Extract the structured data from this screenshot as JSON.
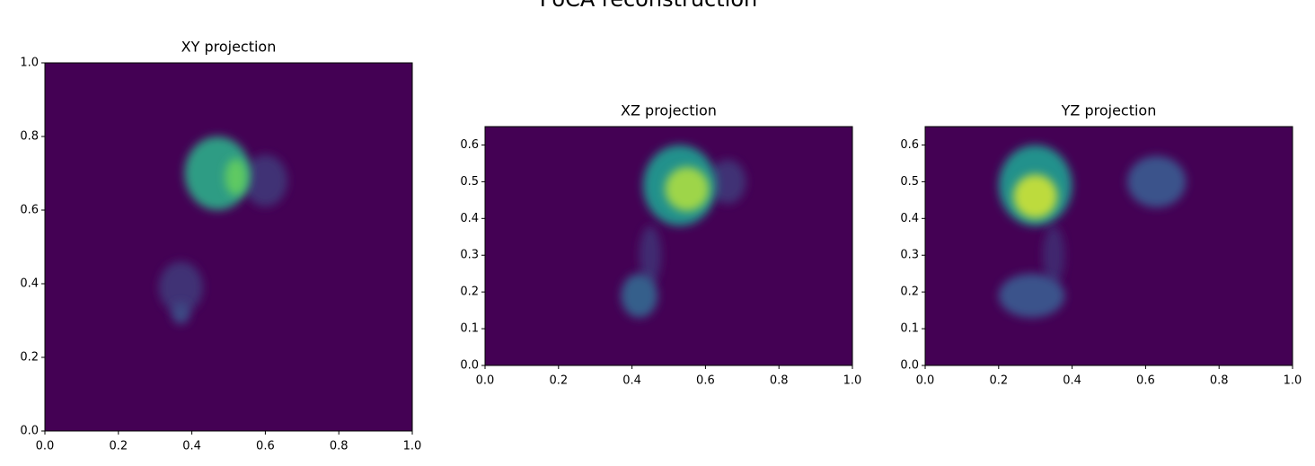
{
  "title": "PoCA reconstruction",
  "chart_data": [
    {
      "type": "heatmap",
      "title": "XY projection",
      "xlim": [
        0,
        1
      ],
      "ylim": [
        0,
        1
      ],
      "xticks": [
        {
          "value": 0,
          "label": "0.0"
        },
        0.2,
        0.4,
        0.6,
        0.8,
        {
          "value": 1,
          "label": "1.0"
        }
      ],
      "yticks": [
        {
          "value": 0,
          "label": "0.0"
        },
        0.2,
        0.4,
        0.6,
        0.8,
        {
          "value": 1,
          "label": "1.0"
        }
      ],
      "blobs": [
        {
          "x": 0.6,
          "y": 0.68,
          "rx": 0.06,
          "ry": 0.07,
          "value": 0.15
        },
        {
          "x": 0.47,
          "y": 0.7,
          "rx": 0.09,
          "ry": 0.1,
          "value": 0.55
        },
        {
          "x": 0.52,
          "y": 0.69,
          "rx": 0.03,
          "ry": 0.05,
          "value": 0.75
        },
        {
          "x": 0.37,
          "y": 0.39,
          "rx": 0.06,
          "ry": 0.07,
          "value": 0.15
        },
        {
          "x": 0.37,
          "y": 0.32,
          "rx": 0.025,
          "ry": 0.03,
          "value": 0.22
        }
      ]
    },
    {
      "type": "heatmap",
      "title": "XZ projection",
      "xlim": [
        0,
        1
      ],
      "ylim": [
        0,
        0.65
      ],
      "xticks": [
        {
          "value": 0,
          "label": "0.0"
        },
        0.2,
        0.4,
        0.6,
        0.8,
        {
          "value": 1,
          "label": "1.0"
        }
      ],
      "yticks": [
        {
          "value": 0,
          "label": "0.0"
        },
        0.1,
        0.2,
        0.3,
        0.4,
        0.5,
        0.6
      ],
      "blobs": [
        {
          "x": 0.66,
          "y": 0.5,
          "rx": 0.05,
          "ry": 0.06,
          "value": 0.15
        },
        {
          "x": 0.45,
          "y": 0.3,
          "rx": 0.03,
          "ry": 0.08,
          "value": 0.13
        },
        {
          "x": 0.53,
          "y": 0.49,
          "rx": 0.1,
          "ry": 0.11,
          "value": 0.5
        },
        {
          "x": 0.55,
          "y": 0.48,
          "rx": 0.06,
          "ry": 0.06,
          "value": 0.85
        },
        {
          "x": 0.42,
          "y": 0.19,
          "rx": 0.05,
          "ry": 0.06,
          "value": 0.3
        }
      ]
    },
    {
      "type": "heatmap",
      "title": "YZ projection",
      "xlim": [
        0,
        1
      ],
      "ylim": [
        0,
        0.65
      ],
      "xticks": [
        {
          "value": 0,
          "label": "0.0"
        },
        0.2,
        0.4,
        0.6,
        0.8,
        {
          "value": 1,
          "label": "1.0"
        }
      ],
      "yticks": [
        {
          "value": 0,
          "label": "0.0"
        },
        0.1,
        0.2,
        0.3,
        0.4,
        0.5,
        0.6
      ],
      "blobs": [
        {
          "x": 0.35,
          "y": 0.3,
          "rx": 0.03,
          "ry": 0.08,
          "value": 0.12
        },
        {
          "x": 0.3,
          "y": 0.49,
          "rx": 0.1,
          "ry": 0.11,
          "value": 0.5
        },
        {
          "x": 0.3,
          "y": 0.46,
          "rx": 0.06,
          "ry": 0.06,
          "value": 0.9
        },
        {
          "x": 0.63,
          "y": 0.5,
          "rx": 0.08,
          "ry": 0.07,
          "value": 0.25
        },
        {
          "x": 0.29,
          "y": 0.19,
          "rx": 0.09,
          "ry": 0.06,
          "value": 0.25
        }
      ]
    }
  ]
}
